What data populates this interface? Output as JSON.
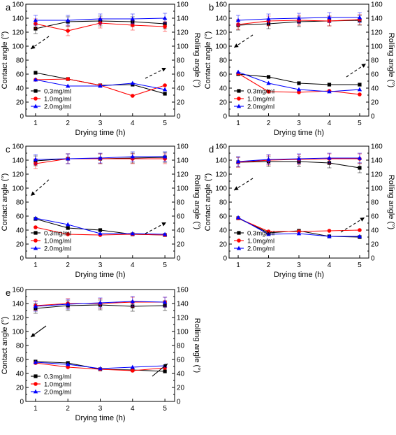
{
  "figure": {
    "y_left_label": "Contact angle (°)",
    "y_right_label": "Rolling angle (°)",
    "x_label": "Drying time (h)",
    "series_colors": [
      "#000000",
      "#ff0000",
      "#0000ff"
    ],
    "legend": [
      "0.3mg/ml",
      "1.0mg/ml",
      "2.0mg/ml"
    ]
  },
  "chart_data": [
    {
      "type": "line",
      "panel": "a",
      "x": [
        1,
        2,
        3,
        4,
        5
      ],
      "xlabel": "Drying time (h)",
      "ylabel": "Contact angle (°)",
      "y2label": "Rolling angle (°)",
      "xlim": [
        0.7,
        5.3
      ],
      "ylim": [
        0,
        160
      ],
      "y_ticks": [
        0,
        20,
        40,
        60,
        80,
        100,
        120,
        140,
        160
      ],
      "x_ticks": [
        1,
        2,
        3,
        4,
        5
      ],
      "legend_placement": "bottom-left",
      "series": [
        {
          "name": "0.3mg/ml",
          "marker": "square",
          "contact": [
            125,
            135,
            136,
            135,
            132
          ],
          "rolling": [
            62,
            53,
            44,
            45,
            32
          ]
        },
        {
          "name": "1.0mg/ml",
          "marker": "circle",
          "contact": [
            132,
            122,
            133,
            130,
            128
          ],
          "rolling": [
            52,
            53,
            44,
            29,
            44
          ]
        },
        {
          "name": "2.0mg/ml",
          "marker": "triangle",
          "contact": [
            137,
            137,
            139,
            139,
            140
          ],
          "rolling": [
            52,
            43,
            43,
            47,
            38
          ]
        }
      ]
    },
    {
      "type": "line",
      "panel": "b",
      "x": [
        1,
        2,
        3,
        4,
        5
      ],
      "xlabel": "Drying time (h)",
      "ylabel": "Contact angle (°)",
      "y2label": "Rolling angle (°)",
      "xlim": [
        0.7,
        5.3
      ],
      "ylim": [
        0,
        160
      ],
      "y_ticks": [
        0,
        20,
        40,
        60,
        80,
        100,
        120,
        140,
        160
      ],
      "x_ticks": [
        1,
        2,
        3,
        4,
        5
      ],
      "legend_placement": "bottom-left",
      "series": [
        {
          "name": "0.3mg/ml",
          "marker": "square",
          "contact": [
            130,
            132,
            135,
            136,
            137
          ],
          "rolling": [
            60,
            56,
            47,
            45,
            45
          ]
        },
        {
          "name": "1.0mg/ml",
          "marker": "circle",
          "contact": [
            131,
            136,
            137,
            136,
            138
          ],
          "rolling": [
            61,
            35,
            34,
            36,
            31
          ]
        },
        {
          "name": "2.0mg/ml",
          "marker": "triangle",
          "contact": [
            137,
            139,
            140,
            141,
            141
          ],
          "rolling": [
            63,
            47,
            38,
            35,
            38
          ]
        }
      ]
    },
    {
      "type": "line",
      "panel": "c",
      "x": [
        1,
        2,
        3,
        4,
        5
      ],
      "xlabel": "Drying time (h)",
      "ylabel": "Contact angle (°)",
      "y2label": "Rolling angle (°)",
      "xlim": [
        0.7,
        5.3
      ],
      "ylim": [
        0,
        160
      ],
      "y_ticks": [
        0,
        20,
        40,
        60,
        80,
        100,
        120,
        140,
        160
      ],
      "x_ticks": [
        1,
        2,
        3,
        4,
        5
      ],
      "legend_placement": "bottom-left",
      "series": [
        {
          "name": "0.3mg/ml",
          "marker": "square",
          "contact": [
            139,
            142,
            142,
            143,
            144
          ],
          "rolling": [
            56,
            43,
            40,
            34,
            33
          ]
        },
        {
          "name": "1.0mg/ml",
          "marker": "circle",
          "contact": [
            135,
            142,
            142,
            142,
            142
          ],
          "rolling": [
            44,
            34,
            33,
            34,
            33
          ]
        },
        {
          "name": "2.0mg/ml",
          "marker": "triangle",
          "contact": [
            141,
            142,
            143,
            145,
            145
          ],
          "rolling": [
            57,
            48,
            35,
            35,
            34
          ]
        }
      ]
    },
    {
      "type": "line",
      "panel": "d",
      "x": [
        1,
        2,
        3,
        4,
        5
      ],
      "xlabel": "Drying time (h)",
      "ylabel": "Contact angle (°)",
      "y2label": "Rolling angle (°)",
      "xlim": [
        0.7,
        5.3
      ],
      "ylim": [
        0,
        160
      ],
      "y_ticks": [
        0,
        20,
        40,
        60,
        80,
        100,
        120,
        140,
        160
      ],
      "x_ticks": [
        1,
        2,
        3,
        4,
        5
      ],
      "legend_placement": "bottom-left",
      "series": [
        {
          "name": "0.3mg/ml",
          "marker": "square",
          "contact": [
            137,
            138,
            138,
            136,
            129
          ],
          "rolling": [
            57,
            36,
            39,
            31,
            30
          ]
        },
        {
          "name": "1.0mg/ml",
          "marker": "circle",
          "contact": [
            137,
            140,
            141,
            142,
            142
          ],
          "rolling": [
            57,
            38,
            38,
            39,
            40
          ]
        },
        {
          "name": "2.0mg/ml",
          "marker": "triangle",
          "contact": [
            138,
            141,
            142,
            143,
            143
          ],
          "rolling": [
            58,
            34,
            35,
            31,
            31
          ]
        }
      ]
    },
    {
      "type": "line",
      "panel": "e",
      "x": [
        1,
        2,
        3,
        4,
        5
      ],
      "xlabel": "Drying time (h)",
      "ylabel": "Contact angle (°)",
      "y2label": "Rolling angle (°)",
      "xlim": [
        0.7,
        5.3
      ],
      "ylim": [
        0,
        160
      ],
      "y_ticks": [
        0,
        20,
        40,
        60,
        80,
        100,
        120,
        140,
        160
      ],
      "x_ticks": [
        1,
        2,
        3,
        4,
        5
      ],
      "legend_placement": "bottom-left",
      "series": [
        {
          "name": "0.3mg/ml",
          "marker": "square",
          "contact": [
            133,
            137,
            138,
            136,
            137
          ],
          "rolling": [
            57,
            55,
            46,
            45,
            43
          ]
        },
        {
          "name": "1.0mg/ml",
          "marker": "circle",
          "contact": [
            137,
            140,
            140,
            142,
            142
          ],
          "rolling": [
            55,
            49,
            46,
            44,
            48
          ]
        },
        {
          "name": "2.0mg/ml",
          "marker": "triangle",
          "contact": [
            136,
            139,
            141,
            143,
            142
          ],
          "rolling": [
            56,
            53,
            47,
            49,
            51
          ]
        }
      ]
    }
  ]
}
